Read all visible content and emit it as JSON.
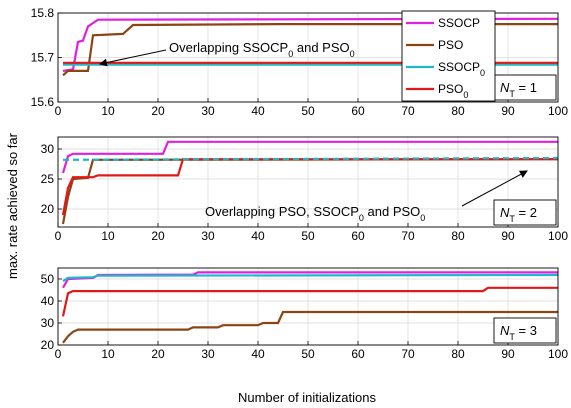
{
  "chart_data": [
    {
      "type": "line",
      "xlim": [
        0,
        100
      ],
      "ylim": [
        15.6,
        15.8
      ],
      "xticks": [
        "0",
        "10",
        "20",
        "30",
        "40",
        "50",
        "60",
        "70",
        "80",
        "90",
        "100"
      ],
      "yticks": [
        "15.6",
        "15.7",
        "15.8"
      ],
      "ytick_values": [
        15.6,
        15.7,
        15.8
      ],
      "grid": true,
      "panel_label": {
        "prefix": "N",
        "sub": "T",
        "suffix": " = 1"
      },
      "legend": {
        "placement": "top-right",
        "entries": [
          {
            "name": "SSOCP",
            "sub": "",
            "series": "SSOCP"
          },
          {
            "name": "PSO",
            "sub": "",
            "series": "PSO"
          },
          {
            "name": "SSOCP",
            "sub": "0",
            "series": "SSOCP0"
          },
          {
            "name": "PSO",
            "sub": "0",
            "series": "PSO0"
          }
        ]
      },
      "annotation": {
        "parts": [
          {
            "t": "Overlapping SSOCP"
          },
          {
            "t": "0",
            "sub": true
          },
          {
            "t": " and PSO"
          },
          {
            "t": "0",
            "sub": true
          }
        ],
        "arrow_to": [
          5,
          15.688
        ]
      },
      "series": [
        {
          "id": "SSOCP",
          "color": "#e020e0",
          "points": [
            [
              1,
              15.67
            ],
            [
              3,
              15.673
            ],
            [
              4,
              15.735
            ],
            [
              5,
              15.738
            ],
            [
              6,
              15.77
            ],
            [
              8,
              15.785
            ],
            [
              100,
              15.787
            ]
          ]
        },
        {
          "id": "PSO",
          "color": "#8b4513",
          "points": [
            [
              1,
              15.66
            ],
            [
              2,
              15.67
            ],
            [
              6,
              15.67
            ],
            [
              7,
              15.75
            ],
            [
              13,
              15.753
            ],
            [
              15,
              15.773
            ],
            [
              44,
              15.775
            ],
            [
              100,
              15.775
            ]
          ]
        },
        {
          "id": "SSOCP0",
          "color": "#20b8c8",
          "points": [
            [
              1,
              15.684
            ],
            [
              100,
              15.684
            ]
          ]
        },
        {
          "id": "PSO0",
          "color": "#e01818",
          "points": [
            [
              1,
              15.688
            ],
            [
              100,
              15.688
            ]
          ]
        }
      ]
    },
    {
      "type": "line",
      "xlim": [
        0,
        100
      ],
      "ylim": [
        17,
        32
      ],
      "xticks": [
        "0",
        "10",
        "20",
        "30",
        "40",
        "50",
        "60",
        "70",
        "80",
        "90",
        "100"
      ],
      "yticks": [
        "20",
        "25",
        "30"
      ],
      "ytick_values": [
        20,
        25,
        30
      ],
      "grid": true,
      "panel_label": {
        "prefix": "N",
        "sub": "T",
        "suffix": " = 2"
      },
      "annotation": {
        "parts": [
          {
            "t": "Overlapping PSO, SSOCP"
          },
          {
            "t": "0",
            "sub": true
          },
          {
            "t": " and PSO"
          },
          {
            "t": "0",
            "sub": true
          }
        ],
        "arrow_to": [
          85,
          28.3
        ]
      },
      "series": [
        {
          "id": "SSOCP",
          "color": "#e020e0",
          "points": [
            [
              1,
              26
            ],
            [
              2,
              28.8
            ],
            [
              3,
              29.2
            ],
            [
              21,
              29.2
            ],
            [
              22,
              31.2
            ],
            [
              100,
              31.2
            ]
          ]
        },
        {
          "id": "PSO",
          "color": "#8b4513",
          "points": [
            [
              1,
              17.5
            ],
            [
              2,
              22
            ],
            [
              3,
              25
            ],
            [
              6,
              25.2
            ],
            [
              7,
              28.2
            ],
            [
              100,
              28.3
            ]
          ]
        },
        {
          "id": "PSO0",
          "color": "#e01818",
          "points": [
            [
              1,
              19
            ],
            [
              2,
              23.5
            ],
            [
              3,
              25.3
            ],
            [
              7,
              25.3
            ],
            [
              8,
              25.6
            ],
            [
              24,
              25.6
            ],
            [
              25,
              28.3
            ],
            [
              100,
              28.3
            ]
          ]
        },
        {
          "id": "SSOCP0",
          "color": "#20b8c8",
          "dashed": true,
          "points": [
            [
              1,
              28.2
            ],
            [
              100,
              28.5
            ]
          ]
        }
      ]
    },
    {
      "type": "line",
      "xlim": [
        0,
        100
      ],
      "ylim": [
        20,
        55
      ],
      "xticks": [
        "0",
        "10",
        "20",
        "30",
        "40",
        "50",
        "60",
        "70",
        "80",
        "90",
        "100"
      ],
      "yticks": [
        "20",
        "30",
        "40",
        "50"
      ],
      "ytick_values": [
        20,
        30,
        40,
        50
      ],
      "grid": true,
      "panel_label": {
        "prefix": "N",
        "sub": "T",
        "suffix": " = 3"
      },
      "series": [
        {
          "id": "SSOCP",
          "color": "#e020e0",
          "points": [
            [
              1,
              46
            ],
            [
              2,
              50
            ],
            [
              7,
              50.5
            ],
            [
              8,
              51.8
            ],
            [
              27,
              52
            ],
            [
              28,
              53
            ],
            [
              100,
              53
            ]
          ]
        },
        {
          "id": "SSOCP0",
          "color": "#20b8c8",
          "points": [
            [
              1,
              49
            ],
            [
              2,
              50.5
            ],
            [
              7,
              50.8
            ],
            [
              8,
              51.5
            ],
            [
              100,
              51.8
            ]
          ]
        },
        {
          "id": "PSO0",
          "color": "#e01818",
          "points": [
            [
              1,
              33
            ],
            [
              2,
              43.5
            ],
            [
              3,
              44.5
            ],
            [
              85,
              44.5
            ],
            [
              86,
              46
            ],
            [
              100,
              46
            ]
          ]
        },
        {
          "id": "PSO",
          "color": "#8b4513",
          "points": [
            [
              1,
              21
            ],
            [
              2,
              24
            ],
            [
              3,
              26
            ],
            [
              4,
              27
            ],
            [
              26,
              27
            ],
            [
              27,
              28
            ],
            [
              32,
              28
            ],
            [
              33,
              29
            ],
            [
              40,
              29
            ],
            [
              41,
              30
            ],
            [
              44,
              30
            ],
            [
              45,
              35
            ],
            [
              100,
              35
            ]
          ]
        }
      ]
    }
  ],
  "ylabel": "max. rate achieved so far",
  "xlabel": "Number of initializations"
}
